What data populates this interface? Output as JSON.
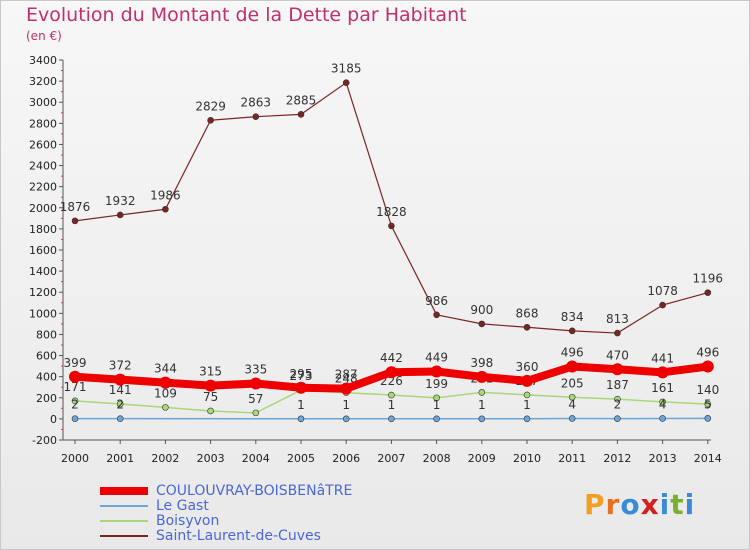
{
  "title": "Evolution du Montant de la Dette par Habitant",
  "subtitle": "(en €)",
  "logo": {
    "text": "Proxiti",
    "colors": [
      "#f0a020",
      "#e87020",
      "#3a8ad6",
      "#d02020",
      "#3a8ad6",
      "#7ab030",
      "#3a8ad6"
    ]
  },
  "chart_data": {
    "type": "line",
    "x": [
      "2000",
      "2001",
      "2002",
      "2003",
      "2004",
      "2005",
      "2006",
      "2007",
      "2008",
      "2009",
      "2010",
      "2011",
      "2012",
      "2013",
      "2014"
    ],
    "ylim": [
      -200,
      3400
    ],
    "yticks": [
      -200,
      0,
      200,
      400,
      600,
      800,
      1000,
      1200,
      1400,
      1600,
      1800,
      2000,
      2200,
      2400,
      2600,
      2800,
      3000,
      3200,
      3400
    ],
    "grid": false,
    "legend_position": "bottom-left",
    "series": [
      {
        "name": "Saint-Laurent-de-Cuves",
        "color": "#7a2424",
        "width": 1.2,
        "marker": 3,
        "values": [
          1876,
          1932,
          1986,
          2829,
          2863,
          2885,
          3185,
          1828,
          986,
          900,
          868,
          834,
          813,
          1078,
          1196
        ],
        "labels": [
          "1876",
          "1932",
          "1986",
          "2829",
          "2863",
          "2885",
          "3185",
          "1828",
          "986",
          "900",
          "868",
          "834",
          "813",
          "1078",
          "1196"
        ]
      },
      {
        "name": "Boisyvon",
        "color": "#a8d878",
        "width": 1.5,
        "marker": 3,
        "values": [
          171,
          141,
          109,
          75,
          57,
          273,
          248,
          226,
          199,
          251,
          227,
          205,
          187,
          161,
          140
        ],
        "labels": [
          "171",
          "141",
          "109",
          "75",
          "57",
          "273",
          "248",
          "226",
          "199",
          "251",
          "227",
          "205",
          "187",
          "161",
          "140"
        ]
      },
      {
        "name": "Le Gast",
        "color": "#6aa6d8",
        "width": 1.5,
        "marker": 3,
        "values": [
          2,
          2,
          null,
          null,
          null,
          1,
          1,
          1,
          1,
          1,
          1,
          4,
          2,
          4,
          5
        ],
        "labels": [
          "2",
          "2",
          "",
          "",
          "",
          "1",
          "1",
          "1",
          "1",
          "1",
          "1",
          "4",
          "2",
          "4",
          "5"
        ]
      },
      {
        "name": "COULOUVRAY-BOISBENâTRE",
        "color": "#ee0000",
        "width": 8,
        "marker": 6,
        "values": [
          399,
          372,
          344,
          315,
          335,
          295,
          287,
          442,
          449,
          398,
          360,
          496,
          470,
          441,
          496
        ],
        "labels": [
          "399",
          "372",
          "344",
          "315",
          "335",
          "295",
          "287",
          "442",
          "449",
          "398",
          "360",
          "496",
          "470",
          "441",
          "496"
        ]
      }
    ],
    "legend_order": [
      "COULOUVRAY-BOISBENâTRE",
      "Le Gast",
      "Boisyvon",
      "Saint-Laurent-de-Cuves"
    ]
  }
}
